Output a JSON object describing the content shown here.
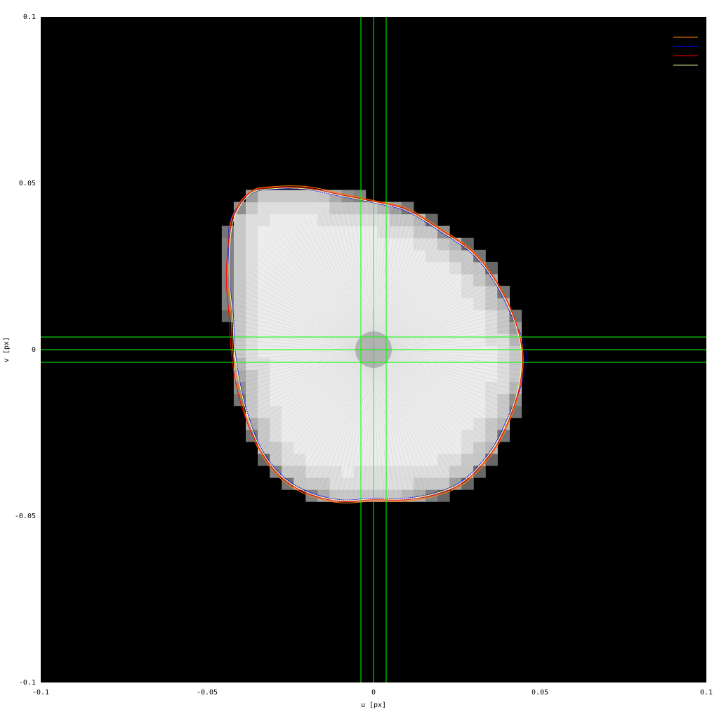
{
  "chart_data": {
    "type": "heatmap",
    "title": "",
    "xlabel": "u [px]",
    "ylabel": "v [px]",
    "xlim": [
      -0.1,
      0.1
    ],
    "ylim": [
      -0.1,
      0.1
    ],
    "x_ticks": [
      {
        "value": -0.1,
        "label": "-0.1"
      },
      {
        "value": -0.05,
        "label": "-0.05"
      },
      {
        "value": 0,
        "label": "0"
      },
      {
        "value": 0.05,
        "label": "0.05"
      },
      {
        "value": 0.1,
        "label": "0.1"
      }
    ],
    "y_ticks": [
      {
        "value": 0.1,
        "label": "0.1"
      },
      {
        "value": 0.05,
        "label": "0.05"
      },
      {
        "value": 0,
        "label": "0"
      },
      {
        "value": -0.05,
        "label": "-0.05"
      },
      {
        "value": -0.1,
        "label": "-0.1"
      }
    ],
    "grid": false,
    "background_color": "#000000",
    "heatmap": {
      "cell_size": 0.0036,
      "low_color": "#000000",
      "high_color": "#eeeeee",
      "region_boundary": [
        [
          -0.037,
          0.047
        ],
        [
          -0.03,
          0.0485
        ],
        [
          -0.02,
          0.0485
        ],
        [
          -0.01,
          0.0465
        ],
        [
          0.0,
          0.0445
        ],
        [
          0.01,
          0.042
        ],
        [
          0.02,
          0.036
        ],
        [
          0.03,
          0.029
        ],
        [
          0.037,
          0.02
        ],
        [
          0.042,
          0.01
        ],
        [
          0.0445,
          0.0
        ],
        [
          0.044,
          -0.01
        ],
        [
          0.041,
          -0.02
        ],
        [
          0.036,
          -0.03
        ],
        [
          0.028,
          -0.039
        ],
        [
          0.02,
          -0.043
        ],
        [
          0.01,
          -0.045
        ],
        [
          0.0,
          -0.045
        ],
        [
          -0.01,
          -0.0455
        ],
        [
          -0.02,
          -0.043
        ],
        [
          -0.028,
          -0.038
        ],
        [
          -0.034,
          -0.03
        ],
        [
          -0.038,
          -0.02
        ],
        [
          -0.0405,
          -0.01
        ],
        [
          -0.042,
          0.0
        ],
        [
          -0.0425,
          0.01
        ],
        [
          -0.0435,
          0.02
        ],
        [
          -0.0435,
          0.03
        ],
        [
          -0.042,
          0.04
        ]
      ]
    },
    "reference_lines": {
      "color": "#00ff00",
      "vertical_x": [
        -0.0038,
        0.0,
        0.0038
      ],
      "horizontal_y": [
        0.0038,
        0.0,
        -0.0038
      ]
    },
    "series": [
      {
        "color": "#ff8000",
        "values": [
          [
            -0.037,
            0.0475
          ],
          [
            -0.03,
            0.049
          ],
          [
            -0.02,
            0.049
          ],
          [
            -0.01,
            0.047
          ],
          [
            0.0,
            0.0448
          ],
          [
            0.01,
            0.0425
          ],
          [
            0.02,
            0.0365
          ],
          [
            0.03,
            0.0295
          ],
          [
            0.037,
            0.0205
          ],
          [
            0.042,
            0.0105
          ],
          [
            0.0448,
            0.0
          ],
          [
            0.0443,
            -0.0102
          ],
          [
            0.0412,
            -0.0205
          ],
          [
            0.0362,
            -0.0305
          ],
          [
            0.0282,
            -0.0395
          ],
          [
            0.0202,
            -0.0435
          ],
          [
            0.01,
            -0.0455
          ],
          [
            0.0,
            -0.0455
          ],
          [
            -0.01,
            -0.046
          ],
          [
            -0.0202,
            -0.0435
          ],
          [
            -0.0282,
            -0.0385
          ],
          [
            -0.0343,
            -0.0303
          ],
          [
            -0.0383,
            -0.0202
          ],
          [
            -0.0408,
            -0.0101
          ],
          [
            -0.0423,
            0.0
          ],
          [
            -0.0428,
            0.0101
          ],
          [
            -0.0438,
            0.0202
          ],
          [
            -0.0438,
            0.0303
          ],
          [
            -0.0423,
            0.0404
          ]
        ]
      },
      {
        "color": "#0000ff",
        "values": [
          [
            -0.0368,
            0.0468
          ],
          [
            -0.0298,
            0.0482
          ],
          [
            -0.0199,
            0.0481
          ],
          [
            -0.0099,
            0.0461
          ],
          [
            0.0,
            0.0441
          ],
          [
            0.0099,
            0.0416
          ],
          [
            0.0198,
            0.0356
          ],
          [
            0.0297,
            0.0287
          ],
          [
            0.0366,
            0.0198
          ],
          [
            0.0416,
            0.0099
          ],
          [
            0.0458,
            0.0
          ],
          [
            0.0446,
            -0.0099
          ],
          [
            0.0406,
            -0.0198
          ],
          [
            0.0356,
            -0.0297
          ],
          [
            0.0277,
            -0.0386
          ],
          [
            0.0198,
            -0.0426
          ],
          [
            0.0099,
            -0.0446
          ],
          [
            0.0,
            -0.0446
          ],
          [
            -0.0099,
            -0.0451
          ],
          [
            -0.0198,
            -0.0426
          ],
          [
            -0.0277,
            -0.0376
          ],
          [
            -0.0337,
            -0.0297
          ],
          [
            -0.0376,
            -0.0198
          ],
          [
            -0.0401,
            -0.0099
          ],
          [
            -0.0416,
            0.0
          ],
          [
            -0.0421,
            0.0099
          ],
          [
            -0.0431,
            0.0198
          ],
          [
            -0.0436,
            0.0297
          ],
          [
            -0.0428,
            0.0396
          ]
        ]
      },
      {
        "color": "#ff0000",
        "values": [
          [
            -0.0372,
            0.0472
          ],
          [
            -0.0302,
            0.0487
          ],
          [
            -0.0201,
            0.0486
          ],
          [
            -0.01,
            0.0466
          ],
          [
            0.0,
            0.0446
          ],
          [
            0.01,
            0.0421
          ],
          [
            0.0201,
            0.0361
          ],
          [
            0.0301,
            0.0291
          ],
          [
            0.0371,
            0.0201
          ],
          [
            0.0421,
            0.01
          ],
          [
            0.0446,
            0.0
          ],
          [
            0.0441,
            -0.01
          ],
          [
            0.0411,
            -0.0201
          ],
          [
            0.0361,
            -0.0301
          ],
          [
            0.0281,
            -0.0391
          ],
          [
            0.0201,
            -0.0431
          ],
          [
            0.01,
            -0.0451
          ],
          [
            0.0,
            -0.0451
          ],
          [
            -0.01,
            -0.0456
          ],
          [
            -0.0201,
            -0.0431
          ],
          [
            -0.0281,
            -0.0381
          ],
          [
            -0.0341,
            -0.0301
          ],
          [
            -0.0386,
            -0.0201
          ],
          [
            -0.0414,
            -0.01
          ],
          [
            -0.0428,
            0.0
          ],
          [
            -0.0434,
            0.01
          ],
          [
            -0.0442,
            0.0201
          ],
          [
            -0.0438,
            0.0301
          ],
          [
            -0.0421,
            0.0401
          ]
        ]
      },
      {
        "color": "#ffffa0",
        "values": [
          [
            -0.0369,
            0.0469
          ],
          [
            -0.0299,
            0.0484
          ],
          [
            -0.02,
            0.0483
          ],
          [
            -0.01,
            0.0463
          ],
          [
            0.0,
            0.0443
          ],
          [
            0.01,
            0.0418
          ],
          [
            0.02,
            0.0358
          ],
          [
            0.0299,
            0.0289
          ],
          [
            0.0368,
            0.0199
          ],
          [
            0.0418,
            0.01
          ],
          [
            0.0443,
            0.0
          ],
          [
            0.0438,
            -0.01
          ],
          [
            0.0408,
            -0.02
          ],
          [
            0.0358,
            -0.0299
          ],
          [
            0.0279,
            -0.0388
          ],
          [
            0.02,
            -0.0428
          ],
          [
            0.01,
            -0.0448
          ],
          [
            0.0,
            -0.0448
          ],
          [
            -0.01,
            -0.0453
          ],
          [
            -0.02,
            -0.0428
          ],
          [
            -0.0279,
            -0.0378
          ],
          [
            -0.0339,
            -0.0299
          ],
          [
            -0.0378,
            -0.02
          ],
          [
            -0.0403,
            -0.01
          ],
          [
            -0.0418,
            0.0
          ],
          [
            -0.0423,
            0.01
          ],
          [
            -0.0433,
            0.02
          ],
          [
            -0.0433,
            0.0299
          ],
          [
            -0.0418,
            0.0398
          ]
        ]
      }
    ],
    "legend": {
      "placement": "top-right",
      "entries": [
        "",
        "",
        "",
        ""
      ]
    }
  }
}
